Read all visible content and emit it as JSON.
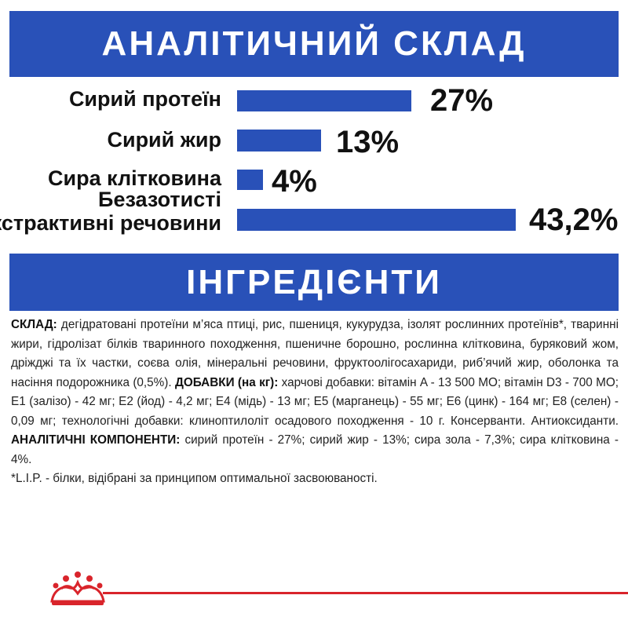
{
  "analytical": {
    "title": "АНАЛІТИЧНИЙ СКЛАД",
    "rows": [
      {
        "label": "Сирий протеїн",
        "value": "27%",
        "fraction": 0.27
      },
      {
        "label": "Сирий жир",
        "value": "13%",
        "fraction": 0.13
      },
      {
        "label": "Сира клітковина",
        "value": "4%",
        "fraction": 0.04
      },
      {
        "label_line1": "Безазотисті",
        "label_line2": "екстрактивні речовини",
        "value": "43,2%",
        "fraction": 0.432
      }
    ]
  },
  "ingredients": {
    "title": "ІНГРЕДІЄНТИ",
    "composition_label": "СКЛАД:",
    "composition_text": " дегідратовані протеїни м’яса птиці, рис, пшениця, кукурудза, ізолят рослинних протеїнів*, тваринні жири, гідролізат білків тваринного походження, пшеничне борошно, рослинна клітковина, буряковий жом, дріжджі та їх частки, соєва олія, мінеральні речовини, фруктоолігосахариди, риб’ячий жир, оболонка та насіння подорожника (0,5%). ",
    "additives_label": "ДОБАВКИ (на кг):",
    "additives_text": " харчові добавки: вітамін A - 13 500 МО; вітамін D3 - 700 МО; E1 (залізо) - 42 мг; E2 (йод) - 4,2 мг; E4 (мідь) - 13 мг; E5 (марганець) - 55 мг; E6 (цинк) - 164 мг; E8 (селен) - 0,09 мг; технологічні добавки: клиноптилоліт осадового походження - 10 г. Консерванти. Антиоксиданти. ",
    "components_label": "АНАЛІТИЧНІ КОМПОНЕНТИ:",
    "components_text": " сирий протеїн - 27%; сирий жир - 13%; сира зола - 7,3%; сира клітковина - 4%.",
    "footnote": "*L.I.P. - білки, відібрані за принципом оптимальної засвоюваності."
  },
  "brand": {
    "logo_icon": "crown-icon",
    "accent_color": "#d9242b",
    "primary_color": "#2951b8"
  }
}
